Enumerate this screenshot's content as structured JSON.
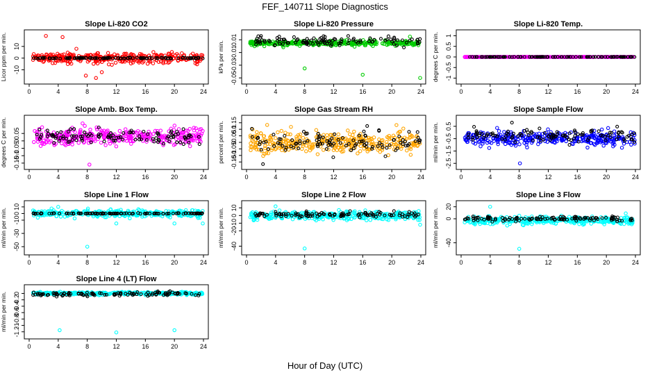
{
  "figure": {
    "title": "FEF_140711  Slope Diagnostics",
    "xlabel": "Hour of Day (UTC)"
  },
  "chart_data": [
    {
      "type": "scatter",
      "title": "Slope Li-820 CO2",
      "ylabel": "Licor ppm per min.",
      "xlim": [
        0,
        24
      ],
      "x_ticks": [
        0,
        4,
        8,
        12,
        16,
        20,
        24
      ],
      "ylim": [
        -18,
        20
      ],
      "y_ticks": [
        -10,
        0,
        10
      ],
      "series": [
        {
          "color": "#ff0000",
          "center": 0,
          "spread": 4,
          "outliers": [
            [
              2.3,
              19
            ],
            [
              4.6,
              18
            ],
            [
              7.8,
              -15
            ],
            [
              9.2,
              -17
            ],
            [
              6.5,
              8
            ],
            [
              10,
              -12
            ]
          ]
        },
        {
          "color": "#000000",
          "center": 0,
          "spread": 0.4,
          "outliers": []
        }
      ]
    },
    {
      "type": "scatter",
      "title": "Slope Li-820 Pressure",
      "ylabel": "kPa per min.",
      "xlim": [
        0,
        24
      ],
      "x_ticks": [
        0,
        4,
        8,
        12,
        16,
        20,
        24
      ],
      "ylim": [
        -0.052,
        0.018
      ],
      "y_ticks": [
        -0.05,
        -0.03,
        -0.01,
        0.01
      ],
      "series": [
        {
          "color": "#00cc00",
          "center": 0.005,
          "spread": 0.004,
          "outliers": [
            [
              8,
              -0.035
            ],
            [
              16,
              -0.045
            ],
            [
              23.9,
              -0.05
            ],
            [
              22.5,
              0.015
            ]
          ]
        },
        {
          "color": "#000000",
          "center": 0.008,
          "spread": 0.006,
          "outliers": [
            [
              2,
              0.016
            ],
            [
              4.5,
              0.015
            ],
            [
              14,
              0.016
            ]
          ]
        }
      ]
    },
    {
      "type": "scatter",
      "title": "Slope Li-820 Temp.",
      "ylabel": "degrees C per min.",
      "xlim": [
        0,
        24
      ],
      "x_ticks": [
        0,
        4,
        8,
        12,
        16,
        20,
        24
      ],
      "ylim": [
        -1.05,
        1.05
      ],
      "y_ticks": [
        -1.0,
        -0.5,
        0.0,
        0.5,
        1.0
      ],
      "series": [
        {
          "color": "#ff00ff",
          "center": 0,
          "spread": 0.005,
          "outliers": []
        },
        {
          "color": "#000000",
          "center": 0,
          "spread": 0.005,
          "outliers": []
        }
      ]
    },
    {
      "type": "scatter",
      "title": "Slope Amb. Box Temp.",
      "ylabel": "degrees C per min.",
      "xlim": [
        0,
        24
      ],
      "x_ticks": [
        0,
        4,
        8,
        12,
        16,
        20,
        24
      ],
      "ylim": [
        -0.16,
        0.14
      ],
      "y_ticks": [
        -0.15,
        -0.1,
        -0.05,
        0.0,
        0.05
      ],
      "series": [
        {
          "color": "#ff00ff",
          "center": 0.03,
          "spread": 0.05,
          "outliers": [
            [
              8.3,
              -0.16
            ]
          ]
        },
        {
          "color": "#000000",
          "center": 0.03,
          "spread": 0.045,
          "outliers": []
        }
      ]
    },
    {
      "type": "scatter",
      "title": "Slope Gas Stream RH",
      "ylabel": "percent per min.",
      "xlim": [
        0,
        24
      ],
      "x_ticks": [
        0,
        4,
        8,
        12,
        16,
        20,
        24
      ],
      "ylim": [
        -0.17,
        0.17
      ],
      "y_ticks": [
        -0.15,
        -0.1,
        -0.05,
        0.0,
        0.05,
        0.1,
        0.15
      ],
      "series": [
        {
          "color": "#ffa500",
          "center": 0,
          "spread": 0.08,
          "outliers": []
        },
        {
          "color": "#000000",
          "center": 0,
          "spread": 0.08,
          "outliers": []
        }
      ]
    },
    {
      "type": "scatter",
      "title": "Slope Sample Flow",
      "ylabel": "ml/min per min.",
      "xlim": [
        0,
        24
      ],
      "x_ticks": [
        0,
        4,
        8,
        12,
        16,
        20,
        24
      ],
      "ylim": [
        -2.6,
        1.0
      ],
      "y_ticks": [
        -2.5,
        -1.5,
        -0.5,
        0.5
      ],
      "series": [
        {
          "color": "#0000ff",
          "center": -0.5,
          "spread": 0.5,
          "outliers": [
            [
              8.1,
              -2.5
            ]
          ]
        },
        {
          "color": "#000000",
          "center": -0.2,
          "spread": 0.5,
          "outliers": [
            [
              7,
              0.8
            ]
          ]
        }
      ]
    },
    {
      "type": "scatter",
      "title": "Slope Line 1 Flow",
      "ylabel": "ml/min per min.",
      "xlim": [
        0,
        24
      ],
      "x_ticks": [
        0,
        4,
        8,
        12,
        16,
        20,
        24
      ],
      "ylim": [
        -55,
        12
      ],
      "y_ticks": [
        -50,
        -30,
        -10,
        0,
        10
      ],
      "series": [
        {
          "color": "#00ffff",
          "center": 0,
          "spread": 5,
          "outliers": [
            [
              4,
              10
            ],
            [
              8,
              -50
            ],
            [
              12,
              -15
            ],
            [
              20,
              -15
            ],
            [
              23.9,
              -15
            ]
          ]
        },
        {
          "color": "#000000",
          "center": 0,
          "spread": 0.5,
          "outliers": []
        }
      ]
    },
    {
      "type": "scatter",
      "title": "Slope Line 2 Flow",
      "ylabel": "ml/min per min.",
      "xlim": [
        0,
        24
      ],
      "x_ticks": [
        0,
        4,
        8,
        12,
        16,
        20,
        24
      ],
      "ylim": [
        -45,
        13
      ],
      "y_ticks": [
        -40,
        -20,
        -10,
        0,
        10
      ],
      "series": [
        {
          "color": "#00ffff",
          "center": 0,
          "spread": 5,
          "outliers": [
            [
              4,
              12
            ],
            [
              8,
              -43
            ],
            [
              23.9,
              -12
            ]
          ]
        },
        {
          "color": "#000000",
          "center": 1,
          "spread": 3,
          "outliers": []
        }
      ]
    },
    {
      "type": "scatter",
      "title": "Slope Line 3 Flow",
      "ylabel": "ml/min per min.",
      "xlim": [
        0,
        24
      ],
      "x_ticks": [
        0,
        4,
        8,
        12,
        16,
        20,
        24
      ],
      "ylim": [
        -52,
        22
      ],
      "y_ticks": [
        -40,
        0,
        20
      ],
      "series": [
        {
          "color": "#00ffff",
          "center": -3,
          "spread": 6,
          "outliers": [
            [
              4,
              20
            ],
            [
              8,
              -50
            ]
          ]
        },
        {
          "color": "#000000",
          "center": 0,
          "spread": 3,
          "outliers": []
        }
      ]
    },
    {
      "type": "scatter",
      "title": "Slope Line 4 (LT) Flow",
      "ylabel": "ml/min per min.",
      "xlim": [
        0,
        24
      ],
      "x_ticks": [
        0,
        4,
        8,
        12,
        16,
        20,
        24
      ],
      "ylim": [
        -1.27,
        0.12
      ],
      "y_ticks": [
        -1.2,
        -1.0,
        -0.8,
        -0.6,
        -0.4,
        -0.2,
        0.0
      ],
      "series": [
        {
          "color": "#00ffff",
          "center": 0,
          "spread": 0.04,
          "outliers": [
            [
              4.2,
              -1.15
            ],
            [
              12,
              -1.22
            ],
            [
              20,
              -1.15
            ]
          ]
        },
        {
          "color": "#000000",
          "center": -0.02,
          "spread": 0.06,
          "outliers": []
        }
      ]
    }
  ]
}
